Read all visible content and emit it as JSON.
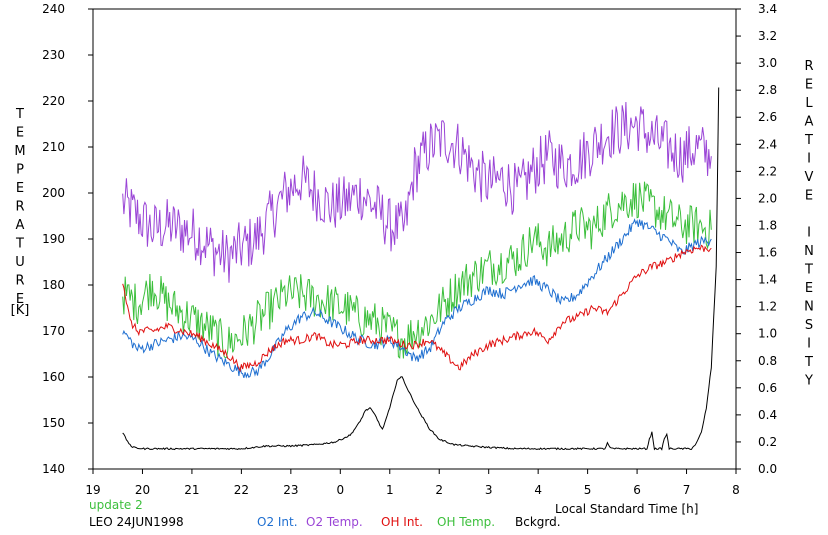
{
  "chart_data": {
    "type": "line",
    "xlabel": "Local Standard Time [h]",
    "ylabel_left": "TEMPERATURE",
    "ylabel_left_unit": "[K]",
    "ylabel_right": "RELATIVE INTENSITY",
    "x_range": [
      19,
      32
    ],
    "x_tick_values": [
      19,
      20,
      21,
      22,
      23,
      24,
      25,
      26,
      27,
      28,
      29,
      30,
      31,
      32
    ],
    "x_tick_labels": [
      "19",
      "20",
      "21",
      "22",
      "23",
      "0",
      "1",
      "2",
      "3",
      "4",
      "5",
      "6",
      "7",
      "8"
    ],
    "y_left_range": [
      140,
      240
    ],
    "y_left_ticks": [
      "140",
      "150",
      "160",
      "170",
      "180",
      "190",
      "200",
      "210",
      "220",
      "230",
      "240"
    ],
    "y_right_range": [
      0.0,
      3.4
    ],
    "y_right_ticks": [
      "0.0",
      "0.2",
      "0.4",
      "0.6",
      "0.8",
      "1.0",
      "1.2",
      "1.4",
      "1.6",
      "1.8",
      "2.0",
      "2.2",
      "2.4",
      "2.6",
      "2.8",
      "3.0",
      "3.2",
      "3.4"
    ],
    "annotations": {
      "update": "update 2",
      "station": "LEO 24JUN1998"
    },
    "series": [
      {
        "name": "O2 Int.",
        "axis": "left",
        "color": "#1f6fd0",
        "noise": 1.2,
        "x": [
          19.6,
          19.9,
          20.2,
          20.5,
          20.8,
          21.1,
          21.4,
          21.7,
          22.0,
          22.3,
          22.6,
          22.9,
          23.2,
          23.5,
          23.8,
          24.1,
          24.4,
          24.7,
          25.0,
          25.3,
          25.5,
          25.8,
          26.1,
          26.4,
          26.7,
          27.0,
          27.3,
          27.6,
          27.9,
          28.2,
          28.5,
          28.8,
          29.1,
          29.4,
          29.7,
          30.0,
          30.3,
          30.6,
          30.9,
          31.2,
          31.5
        ],
        "y": [
          170,
          166,
          167,
          168,
          169,
          168,
          165,
          163,
          161,
          161,
          165,
          170,
          173,
          174,
          172,
          170,
          168,
          167,
          168,
          166,
          164,
          166,
          172,
          175,
          177,
          179,
          178,
          180,
          181,
          179,
          176,
          178,
          182,
          186,
          190,
          194,
          192,
          190,
          187,
          189,
          190
        ]
      },
      {
        "name": "O2 Temp.",
        "axis": "left",
        "color": "#9a45d6",
        "noise": 6,
        "x": [
          19.6,
          19.9,
          20.2,
          20.5,
          20.8,
          21.1,
          21.4,
          21.7,
          22.0,
          22.3,
          22.6,
          22.9,
          23.2,
          23.5,
          23.8,
          24.1,
          24.4,
          24.7,
          25.0,
          25.3,
          25.5,
          25.8,
          26.1,
          26.4,
          26.7,
          27.0,
          27.3,
          27.6,
          27.9,
          28.2,
          28.5,
          28.8,
          29.1,
          29.4,
          29.7,
          30.0,
          30.3,
          30.6,
          30.9,
          31.2,
          31.5
        ],
        "y": [
          198,
          195,
          192,
          193,
          192,
          191,
          188,
          186,
          188,
          190,
          195,
          200,
          203,
          200,
          197,
          198,
          200,
          197,
          193,
          192,
          205,
          210,
          212,
          210,
          205,
          202,
          203,
          200,
          205,
          208,
          206,
          207,
          210,
          213,
          214,
          215,
          212,
          210,
          208,
          210,
          208
        ]
      },
      {
        "name": "OH Int.",
        "axis": "left",
        "color": "#e01010",
        "noise": 0.9,
        "x": [
          19.6,
          19.75,
          19.9,
          20.2,
          20.5,
          20.8,
          21.1,
          21.4,
          21.7,
          22.0,
          22.3,
          22.6,
          22.9,
          23.2,
          23.5,
          23.8,
          24.1,
          24.4,
          24.7,
          25.0,
          25.3,
          25.5,
          25.8,
          26.1,
          26.4,
          26.7,
          27.0,
          27.3,
          27.6,
          27.9,
          28.2,
          28.5,
          28.8,
          29.1,
          29.4,
          29.7,
          30.0,
          30.3,
          30.6,
          30.9,
          31.2,
          31.5
        ],
        "y": [
          181,
          172,
          170,
          170,
          171,
          170,
          169,
          167,
          165,
          162,
          163,
          166,
          168,
          168,
          169,
          167,
          167,
          168,
          168,
          168,
          167,
          167,
          168,
          165,
          162,
          165,
          167,
          168,
          169,
          170,
          168,
          172,
          173,
          175,
          174,
          178,
          182,
          184,
          185,
          187,
          188,
          188
        ]
      },
      {
        "name": "OH Temp.",
        "axis": "left",
        "color": "#3cbf3c",
        "noise": 4.5,
        "x": [
          19.6,
          19.9,
          20.2,
          20.5,
          20.8,
          21.1,
          21.4,
          21.7,
          22.0,
          22.3,
          22.6,
          22.9,
          23.2,
          23.5,
          23.8,
          24.1,
          24.4,
          24.7,
          25.0,
          25.3,
          25.5,
          25.8,
          26.1,
          26.4,
          26.7,
          27.0,
          27.3,
          27.6,
          27.9,
          28.2,
          28.5,
          28.8,
          29.1,
          29.4,
          29.7,
          30.0,
          30.3,
          30.6,
          30.9,
          31.2,
          31.5
        ],
        "y": [
          178,
          176,
          180,
          176,
          174,
          172,
          170,
          167,
          169,
          172,
          175,
          178,
          178,
          177,
          176,
          175,
          173,
          172,
          170,
          168,
          170,
          172,
          176,
          180,
          182,
          184,
          185,
          186,
          190,
          188,
          190,
          193,
          192,
          196,
          198,
          199,
          197,
          195,
          193,
          193,
          192
        ]
      },
      {
        "name": "Bckgrd.",
        "axis": "right",
        "color": "#000000",
        "noise": 0.006,
        "x": [
          19.6,
          19.7,
          19.8,
          20.0,
          20.5,
          21.0,
          21.5,
          22.0,
          22.5,
          23.0,
          23.5,
          23.9,
          24.2,
          24.4,
          24.5,
          24.6,
          24.7,
          24.85,
          25.0,
          25.15,
          25.25,
          25.4,
          25.6,
          25.8,
          26.0,
          26.3,
          26.6,
          27.0,
          27.5,
          28.0,
          28.5,
          29.0,
          29.35,
          29.4,
          29.45,
          29.5,
          30.0,
          30.2,
          30.25,
          30.3,
          30.35,
          30.5,
          30.55,
          30.6,
          30.65,
          30.9,
          31.1,
          31.2,
          31.3,
          31.4,
          31.5,
          31.6,
          31.65
        ],
        "y": [
          0.27,
          0.2,
          0.16,
          0.15,
          0.15,
          0.15,
          0.15,
          0.15,
          0.17,
          0.17,
          0.18,
          0.2,
          0.25,
          0.35,
          0.43,
          0.45,
          0.4,
          0.29,
          0.45,
          0.66,
          0.68,
          0.56,
          0.42,
          0.3,
          0.22,
          0.18,
          0.17,
          0.16,
          0.15,
          0.15,
          0.15,
          0.15,
          0.15,
          0.19,
          0.16,
          0.15,
          0.15,
          0.15,
          0.22,
          0.27,
          0.15,
          0.15,
          0.22,
          0.26,
          0.15,
          0.15,
          0.15,
          0.19,
          0.27,
          0.45,
          0.75,
          1.5,
          2.82
        ]
      }
    ]
  }
}
